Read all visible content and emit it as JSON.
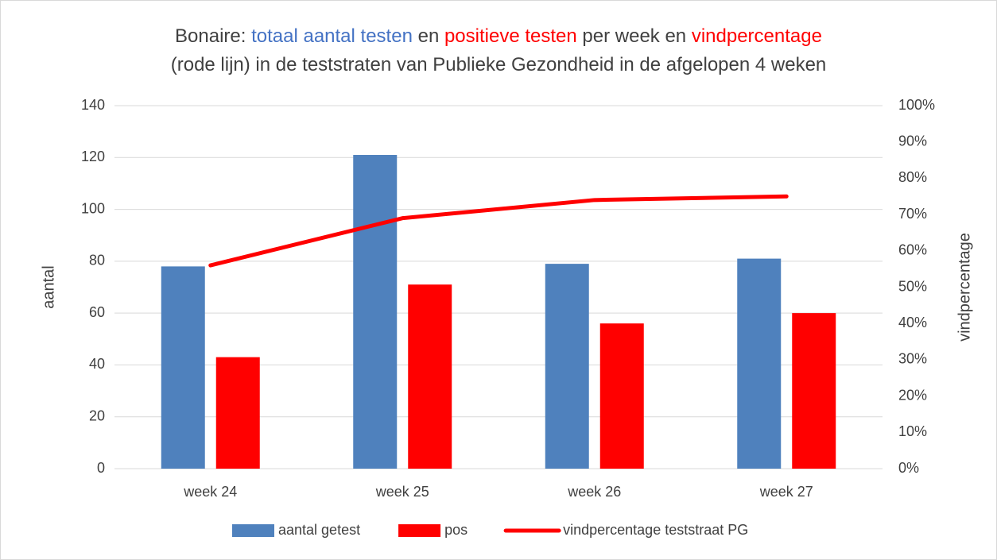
{
  "chart_data": {
    "type": "bar",
    "title": [
      [
        {
          "text": "Bonaire: ",
          "color": "#404040"
        },
        {
          "text": "totaal aantal testen",
          "color": "#4472c4"
        },
        {
          "text": " en ",
          "color": "#404040"
        },
        {
          "text": "positieve testen",
          "color": "#ff0000"
        },
        {
          "text": " per week en ",
          "color": "#404040"
        },
        {
          "text": "vindpercentage",
          "color": "#ff0000"
        }
      ],
      [
        {
          "text": "(rode lijn) in de teststraten van Publieke Gezondheid in de afgelopen 4 weken",
          "color": "#404040"
        }
      ]
    ],
    "categories": [
      "week 24",
      "week 25",
      "week 26",
      "week 27"
    ],
    "series": [
      {
        "name": "aantal getest",
        "type": "bar",
        "color": "#4f81bd",
        "values": [
          78,
          121,
          79,
          81
        ]
      },
      {
        "name": "pos",
        "type": "bar",
        "color": "#ff0000",
        "values": [
          43,
          71,
          56,
          60
        ]
      },
      {
        "name": "vindpercentage teststraat PG",
        "type": "line",
        "axis": "y2",
        "color": "#ff0000",
        "values": [
          56,
          69,
          74,
          75
        ]
      }
    ],
    "ylabel": "aantal",
    "y2label": "vindpercentage",
    "ylim": [
      0,
      140
    ],
    "yticks": [
      0,
      20,
      40,
      60,
      80,
      100,
      120,
      140
    ],
    "y2lim": [
      0,
      100
    ],
    "y2ticks": [
      {
        "value": 0,
        "label": "0%"
      },
      {
        "value": 10,
        "label": "10%"
      },
      {
        "value": 20,
        "label": "20%"
      },
      {
        "value": 30,
        "label": "30%"
      },
      {
        "value": 40,
        "label": "40%"
      },
      {
        "value": 50,
        "label": "50%"
      },
      {
        "value": 60,
        "label": "60%"
      },
      {
        "value": 70,
        "label": "70%"
      },
      {
        "value": 80,
        "label": "80%"
      },
      {
        "value": 90,
        "label": "90%"
      },
      {
        "value": 100,
        "label": "100%"
      }
    ],
    "grid": true,
    "legend": "bottom"
  }
}
